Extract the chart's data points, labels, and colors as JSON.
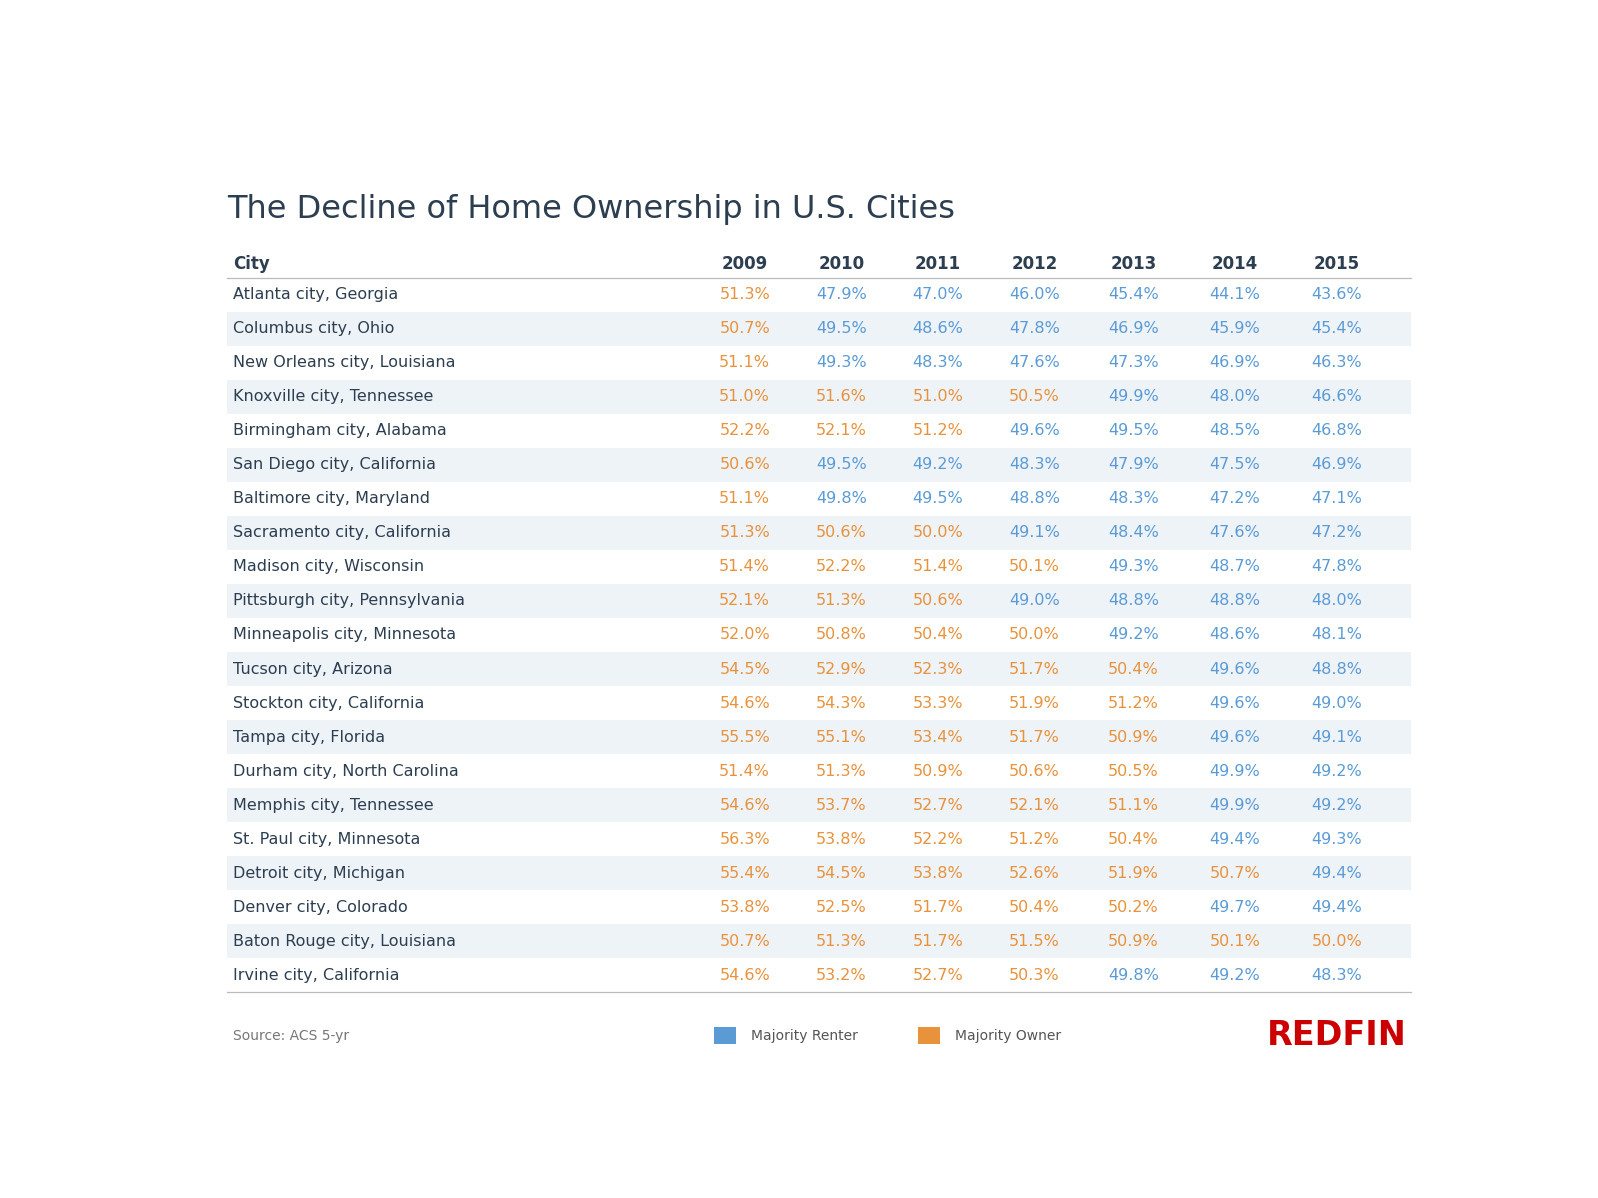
{
  "title": "The Decline of Home Ownership in U.S. Cities",
  "source": "Source: ACS 5-yr",
  "columns": [
    "City",
    "2009",
    "2010",
    "2011",
    "2012",
    "2013",
    "2014",
    "2015"
  ],
  "rows": [
    {
      "city": "Atlanta city, Georgia",
      "values": [
        "51.3%",
        "47.9%",
        "47.0%",
        "46.0%",
        "45.4%",
        "44.1%",
        "43.6%"
      ],
      "colors": [
        "orange",
        "blue",
        "blue",
        "blue",
        "blue",
        "blue",
        "blue"
      ]
    },
    {
      "city": "Columbus city, Ohio",
      "values": [
        "50.7%",
        "49.5%",
        "48.6%",
        "47.8%",
        "46.9%",
        "45.9%",
        "45.4%"
      ],
      "colors": [
        "orange",
        "blue",
        "blue",
        "blue",
        "blue",
        "blue",
        "blue"
      ]
    },
    {
      "city": "New Orleans city, Louisiana",
      "values": [
        "51.1%",
        "49.3%",
        "48.3%",
        "47.6%",
        "47.3%",
        "46.9%",
        "46.3%"
      ],
      "colors": [
        "orange",
        "blue",
        "blue",
        "blue",
        "blue",
        "blue",
        "blue"
      ]
    },
    {
      "city": "Knoxville city, Tennessee",
      "values": [
        "51.0%",
        "51.6%",
        "51.0%",
        "50.5%",
        "49.9%",
        "48.0%",
        "46.6%"
      ],
      "colors": [
        "orange",
        "orange",
        "orange",
        "orange",
        "blue",
        "blue",
        "blue"
      ]
    },
    {
      "city": "Birmingham city, Alabama",
      "values": [
        "52.2%",
        "52.1%",
        "51.2%",
        "49.6%",
        "49.5%",
        "48.5%",
        "46.8%"
      ],
      "colors": [
        "orange",
        "orange",
        "orange",
        "blue",
        "blue",
        "blue",
        "blue"
      ]
    },
    {
      "city": "San Diego city, California",
      "values": [
        "50.6%",
        "49.5%",
        "49.2%",
        "48.3%",
        "47.9%",
        "47.5%",
        "46.9%"
      ],
      "colors": [
        "orange",
        "blue",
        "blue",
        "blue",
        "blue",
        "blue",
        "blue"
      ]
    },
    {
      "city": "Baltimore city, Maryland",
      "values": [
        "51.1%",
        "49.8%",
        "49.5%",
        "48.8%",
        "48.3%",
        "47.2%",
        "47.1%"
      ],
      "colors": [
        "orange",
        "blue",
        "blue",
        "blue",
        "blue",
        "blue",
        "blue"
      ]
    },
    {
      "city": "Sacramento city, California",
      "values": [
        "51.3%",
        "50.6%",
        "50.0%",
        "49.1%",
        "48.4%",
        "47.6%",
        "47.2%"
      ],
      "colors": [
        "orange",
        "orange",
        "orange",
        "blue",
        "blue",
        "blue",
        "blue"
      ]
    },
    {
      "city": "Madison city, Wisconsin",
      "values": [
        "51.4%",
        "52.2%",
        "51.4%",
        "50.1%",
        "49.3%",
        "48.7%",
        "47.8%"
      ],
      "colors": [
        "orange",
        "orange",
        "orange",
        "orange",
        "blue",
        "blue",
        "blue"
      ]
    },
    {
      "city": "Pittsburgh city, Pennsylvania",
      "values": [
        "52.1%",
        "51.3%",
        "50.6%",
        "49.0%",
        "48.8%",
        "48.8%",
        "48.0%"
      ],
      "colors": [
        "orange",
        "orange",
        "orange",
        "blue",
        "blue",
        "blue",
        "blue"
      ]
    },
    {
      "city": "Minneapolis city, Minnesota",
      "values": [
        "52.0%",
        "50.8%",
        "50.4%",
        "50.0%",
        "49.2%",
        "48.6%",
        "48.1%"
      ],
      "colors": [
        "orange",
        "orange",
        "orange",
        "orange",
        "blue",
        "blue",
        "blue"
      ]
    },
    {
      "city": "Tucson city, Arizona",
      "values": [
        "54.5%",
        "52.9%",
        "52.3%",
        "51.7%",
        "50.4%",
        "49.6%",
        "48.8%"
      ],
      "colors": [
        "orange",
        "orange",
        "orange",
        "orange",
        "orange",
        "blue",
        "blue"
      ]
    },
    {
      "city": "Stockton city, California",
      "values": [
        "54.6%",
        "54.3%",
        "53.3%",
        "51.9%",
        "51.2%",
        "49.6%",
        "49.0%"
      ],
      "colors": [
        "orange",
        "orange",
        "orange",
        "orange",
        "orange",
        "blue",
        "blue"
      ]
    },
    {
      "city": "Tampa city, Florida",
      "values": [
        "55.5%",
        "55.1%",
        "53.4%",
        "51.7%",
        "50.9%",
        "49.6%",
        "49.1%"
      ],
      "colors": [
        "orange",
        "orange",
        "orange",
        "orange",
        "orange",
        "blue",
        "blue"
      ]
    },
    {
      "city": "Durham city, North Carolina",
      "values": [
        "51.4%",
        "51.3%",
        "50.9%",
        "50.6%",
        "50.5%",
        "49.9%",
        "49.2%"
      ],
      "colors": [
        "orange",
        "orange",
        "orange",
        "orange",
        "orange",
        "blue",
        "blue"
      ]
    },
    {
      "city": "Memphis city, Tennessee",
      "values": [
        "54.6%",
        "53.7%",
        "52.7%",
        "52.1%",
        "51.1%",
        "49.9%",
        "49.2%"
      ],
      "colors": [
        "orange",
        "orange",
        "orange",
        "orange",
        "orange",
        "blue",
        "blue"
      ]
    },
    {
      "city": "St. Paul city, Minnesota",
      "values": [
        "56.3%",
        "53.8%",
        "52.2%",
        "51.2%",
        "50.4%",
        "49.4%",
        "49.3%"
      ],
      "colors": [
        "orange",
        "orange",
        "orange",
        "orange",
        "orange",
        "blue",
        "blue"
      ]
    },
    {
      "city": "Detroit city, Michigan",
      "values": [
        "55.4%",
        "54.5%",
        "53.8%",
        "52.6%",
        "51.9%",
        "50.7%",
        "49.4%"
      ],
      "colors": [
        "orange",
        "orange",
        "orange",
        "orange",
        "orange",
        "orange",
        "blue"
      ]
    },
    {
      "city": "Denver city, Colorado",
      "values": [
        "53.8%",
        "52.5%",
        "51.7%",
        "50.4%",
        "50.2%",
        "49.7%",
        "49.4%"
      ],
      "colors": [
        "orange",
        "orange",
        "orange",
        "orange",
        "orange",
        "blue",
        "blue"
      ]
    },
    {
      "city": "Baton Rouge city, Louisiana",
      "values": [
        "50.7%",
        "51.3%",
        "51.7%",
        "51.5%",
        "50.9%",
        "50.1%",
        "50.0%"
      ],
      "colors": [
        "orange",
        "orange",
        "orange",
        "orange",
        "orange",
        "orange",
        "orange"
      ]
    },
    {
      "city": "Irvine city, California",
      "values": [
        "54.6%",
        "53.2%",
        "52.7%",
        "50.3%",
        "49.8%",
        "49.2%",
        "48.3%"
      ],
      "colors": [
        "orange",
        "orange",
        "orange",
        "orange",
        "blue",
        "blue",
        "blue"
      ]
    }
  ],
  "orange_color": "#E8923C",
  "blue_color": "#5B9BD5",
  "header_color": "#2C3E50",
  "bg_color": "#FFFFFF",
  "alt_row_color": "#EEF3F8",
  "title_color": "#2C3E50",
  "city_color": "#2C3E50",
  "redfin_color": "#CC0000",
  "line_color": "#BBBBBB",
  "source_color": "#777777",
  "legend_color": "#555555"
}
